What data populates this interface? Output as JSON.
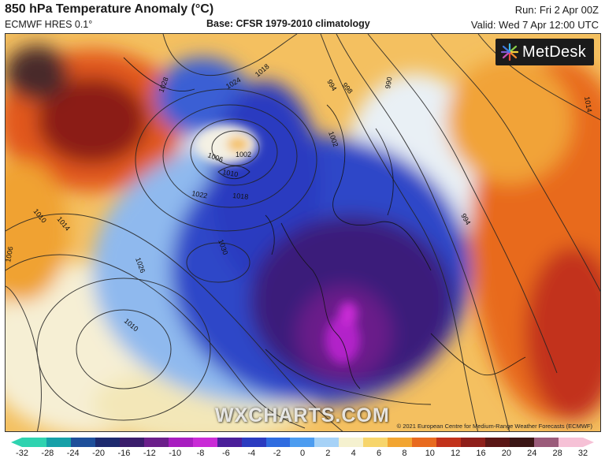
{
  "header": {
    "title": "850 hPa Temperature Anomaly (°C)",
    "model": "ECMWF HRES 0.1°",
    "base": "Base: CFSR 1979-2010 climatology",
    "run": "Run: Fri 2 Apr 00Z",
    "valid": "Valid: Wed 7 Apr 12:00 UTC"
  },
  "logo": {
    "text": "MetDesk",
    "icon": "metdesk-burst-icon"
  },
  "watermark": "WXCHARTS.COM",
  "copyright": "© 2021 European Centre for Medium-Range Weather Forecasts (ECMWF)",
  "isobar_labels": [
    "1028",
    "1024",
    "1018",
    "994",
    "990",
    "1002",
    "1006",
    "1010",
    "1022",
    "1018",
    "1010",
    "1014",
    "1006",
    "1026",
    "1030",
    "1010",
    "998",
    "1002",
    "994",
    "1014"
  ],
  "colorbar": {
    "ticks": [
      "-32",
      "-28",
      "-24",
      "-20",
      "-16",
      "-12",
      "-10",
      "-8",
      "-6",
      "-4",
      "-2",
      "0",
      "2",
      "4",
      "6",
      "8",
      "10",
      "12",
      "16",
      "20",
      "24",
      "28",
      "32"
    ],
    "colors": [
      "#2fd3b0",
      "#16a0a8",
      "#1e4f9a",
      "#1d2a6e",
      "#3a1d6b",
      "#6b1f8a",
      "#a81ec0",
      "#c92bd6",
      "#4b1f9a",
      "#2b3bc0",
      "#2f6ce0",
      "#4c9cf0",
      "#a6d2f7",
      "#f5f1cf",
      "#f7d56b",
      "#f2a531",
      "#e86a1f",
      "#c2321b",
      "#8e1f1a",
      "#5a1615",
      "#3b1615",
      "#9b5b7a",
      "#f6c1d6"
    ]
  },
  "colors": {
    "deep_cold": "#3a1d7a",
    "cold": "#2f46c8",
    "cool": "#5f96e6",
    "neutral": "#f3eed8",
    "warm": "#f4b23c",
    "hot": "#e2591f",
    "very_hot": "#8b1e18"
  }
}
